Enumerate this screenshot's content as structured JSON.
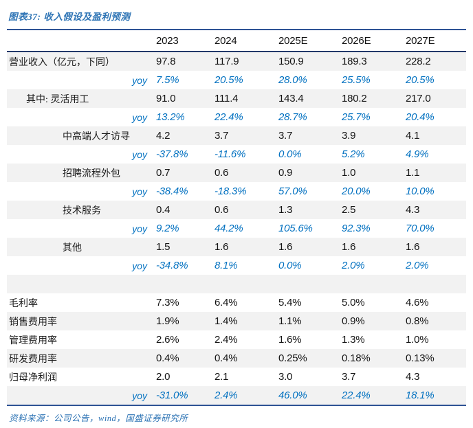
{
  "title": "图表37: 收入假设及盈利预测",
  "source": "资料来源：公司公告，wind，国盛证券研究所",
  "colors": {
    "title_blue": "#2E74B5",
    "yoy_blue": "#0070C0",
    "rule_navy": "#2E5395",
    "stripe_gray": "#F2F2F2"
  },
  "table": {
    "columns": [
      "2023",
      "2024",
      "2025E",
      "2026E",
      "2027E"
    ],
    "rows": [
      {
        "label": "营业收入（亿元，下同）",
        "type": "data",
        "indent": 0,
        "values": [
          "97.8",
          "117.9",
          "150.9",
          "189.3",
          "228.2"
        ]
      },
      {
        "label": "yoy",
        "type": "yoy",
        "indent": 0,
        "values": [
          "7.5%",
          "20.5%",
          "28.0%",
          "25.5%",
          "20.5%"
        ]
      },
      {
        "label": "其中: 灵活用工",
        "type": "data",
        "indent": 1,
        "values": [
          "91.0",
          "111.4",
          "143.4",
          "180.2",
          "217.0"
        ]
      },
      {
        "label": "yoy",
        "type": "yoy",
        "indent": 0,
        "values": [
          "13.2%",
          "22.4%",
          "28.7%",
          "25.7%",
          "20.4%"
        ]
      },
      {
        "label": "中高端人才访寻",
        "type": "data",
        "indent": 2,
        "values": [
          "4.2",
          "3.7",
          "3.7",
          "3.9",
          "4.1"
        ]
      },
      {
        "label": "yoy",
        "type": "yoy",
        "indent": 0,
        "values": [
          "-37.8%",
          "-11.6%",
          "0.0%",
          "5.2%",
          "4.9%"
        ]
      },
      {
        "label": "招聘流程外包",
        "type": "data",
        "indent": 2,
        "values": [
          "0.7",
          "0.6",
          "0.9",
          "1.0",
          "1.1"
        ]
      },
      {
        "label": "yoy",
        "type": "yoy",
        "indent": 0,
        "values": [
          "-38.4%",
          "-18.3%",
          "57.0%",
          "20.0%",
          "10.0%"
        ]
      },
      {
        "label": "技术服务",
        "type": "data",
        "indent": 2,
        "values": [
          "0.4",
          "0.6",
          "1.3",
          "2.5",
          "4.3"
        ]
      },
      {
        "label": "yoy",
        "type": "yoy",
        "indent": 0,
        "values": [
          "9.2%",
          "44.2%",
          "105.6%",
          "92.3%",
          "70.0%"
        ]
      },
      {
        "label": "其他",
        "type": "data",
        "indent": 2,
        "values": [
          "1.5",
          "1.6",
          "1.6",
          "1.6",
          "1.6"
        ]
      },
      {
        "label": "yoy",
        "type": "yoy",
        "indent": 0,
        "values": [
          "-34.8%",
          "8.1%",
          "0.0%",
          "2.0%",
          "2.0%"
        ]
      },
      {
        "label": "",
        "type": "spacer",
        "indent": 0,
        "values": [
          "",
          "",
          "",
          "",
          ""
        ]
      },
      {
        "label": "毛利率",
        "type": "data",
        "indent": 0,
        "values": [
          "7.3%",
          "6.4%",
          "5.4%",
          "5.0%",
          "4.6%"
        ]
      },
      {
        "label": "销售费用率",
        "type": "data",
        "indent": 0,
        "values": [
          "1.9%",
          "1.4%",
          "1.1%",
          "0.9%",
          "0.8%"
        ]
      },
      {
        "label": "管理费用率",
        "type": "data",
        "indent": 0,
        "values": [
          "2.6%",
          "2.4%",
          "1.6%",
          "1.3%",
          "1.0%"
        ]
      },
      {
        "label": "研发费用率",
        "type": "data",
        "indent": 0,
        "values": [
          "0.4%",
          "0.4%",
          "0.25%",
          "0.18%",
          "0.13%"
        ]
      },
      {
        "label": "归母净利润",
        "type": "data",
        "indent": 0,
        "values": [
          "2.0",
          "2.1",
          "3.0",
          "3.7",
          "4.3"
        ]
      },
      {
        "label": "yoy",
        "type": "yoy",
        "indent": 0,
        "values": [
          "-31.0%",
          "2.4%",
          "46.0%",
          "22.4%",
          "18.1%"
        ]
      }
    ]
  }
}
